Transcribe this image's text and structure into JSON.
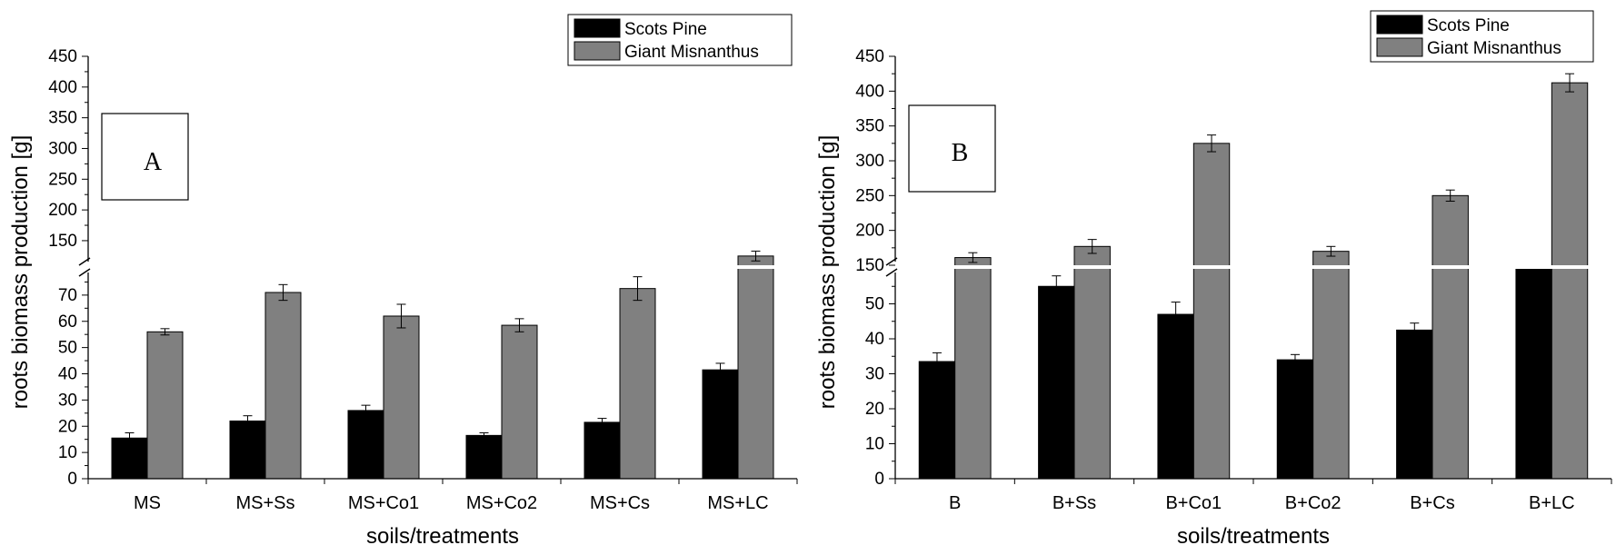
{
  "figure": {
    "series_colors": {
      "Scots Pine": "#000000",
      "Giant Misnanthus": "#808080"
    },
    "legend": [
      "Scots Pine",
      "Giant Misnanthus"
    ]
  },
  "chart_data": [
    {
      "type": "bar",
      "panel_label": "A",
      "categories": [
        "MS",
        "MS+Ss",
        "MS+Co1",
        "MS+Co2",
        "MS+Cs",
        "MS+LC"
      ],
      "series": [
        {
          "name": "Scots Pine",
          "color": "#000000",
          "values": [
            15.5,
            22,
            26,
            16.5,
            21.5,
            41.5
          ],
          "errors": [
            2,
            2,
            2,
            1,
            1.5,
            2.5
          ]
        },
        {
          "name": "Giant Misnanthus",
          "color": "#808080",
          "values": [
            56,
            71,
            62,
            58.5,
            72.5,
            125
          ],
          "errors": [
            1.2,
            3,
            4.5,
            2.5,
            4.5,
            8
          ]
        }
      ],
      "xlabel": "soils/treatments",
      "ylabel": "roots biomass production [g]",
      "broken_axis": true,
      "ylim_lower": [
        0,
        80
      ],
      "ylim_upper": [
        110,
        450
      ],
      "yticks_lower": [
        0,
        10,
        20,
        30,
        40,
        50,
        60,
        70
      ],
      "yticks_upper": [
        150,
        200,
        250,
        300,
        350,
        400,
        450
      ],
      "legend_position": "top-right"
    },
    {
      "type": "bar",
      "panel_label": "B",
      "categories": [
        "B",
        "B+Ss",
        "B+Co1",
        "B+Co2",
        "B+Cs",
        "B+LC"
      ],
      "series": [
        {
          "name": "Scots Pine",
          "color": "#000000",
          "values": [
            33.5,
            55,
            47,
            34,
            42.5,
            60
          ],
          "errors": [
            2.5,
            3,
            3.5,
            1.5,
            2,
            0
          ]
        },
        {
          "name": "Giant Misnanthus",
          "color": "#808080",
          "values": [
            161,
            177,
            325,
            170,
            250,
            412
          ],
          "errors": [
            7,
            10,
            12,
            7,
            8,
            13
          ]
        }
      ],
      "xlabel": "soils/treatments",
      "ylabel": "roots biomass production [g]",
      "broken_axis": true,
      "ylim_lower": [
        0,
        60
      ],
      "ylim_upper": [
        150,
        450
      ],
      "yticks_lower": [
        0,
        10,
        20,
        30,
        40,
        50
      ],
      "yticks_upper": [
        150,
        200,
        250,
        300,
        350,
        400,
        450
      ],
      "legend_position": "top-right"
    }
  ]
}
